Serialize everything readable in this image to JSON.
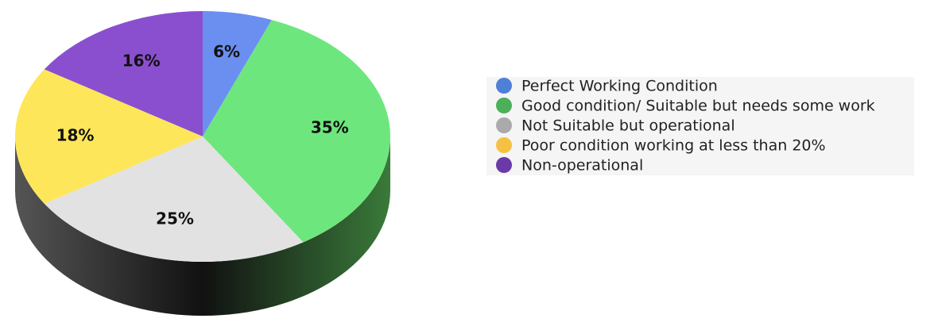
{
  "chart_data": {
    "type": "pie",
    "categories": [
      "Perfect Working Condition",
      "Good condition/ Suitable  but needs some work",
      "Not Suitable but operational",
      "Poor condition working at less than 20%",
      "Non-operational"
    ],
    "values": [
      6,
      35,
      25,
      18,
      16
    ],
    "value_labels": [
      "6%",
      "35%",
      "25%",
      "18%",
      "16%"
    ],
    "colors": [
      "#6b8ff0",
      "#6ee67e",
      "#e2e2e2",
      "#fde65a",
      "#8a4fcf"
    ],
    "legend_colors": [
      "#4f7fd6",
      "#4caf5a",
      "#aaaaaa",
      "#f6c143",
      "#6a3aa8"
    ],
    "legend": "right"
  }
}
